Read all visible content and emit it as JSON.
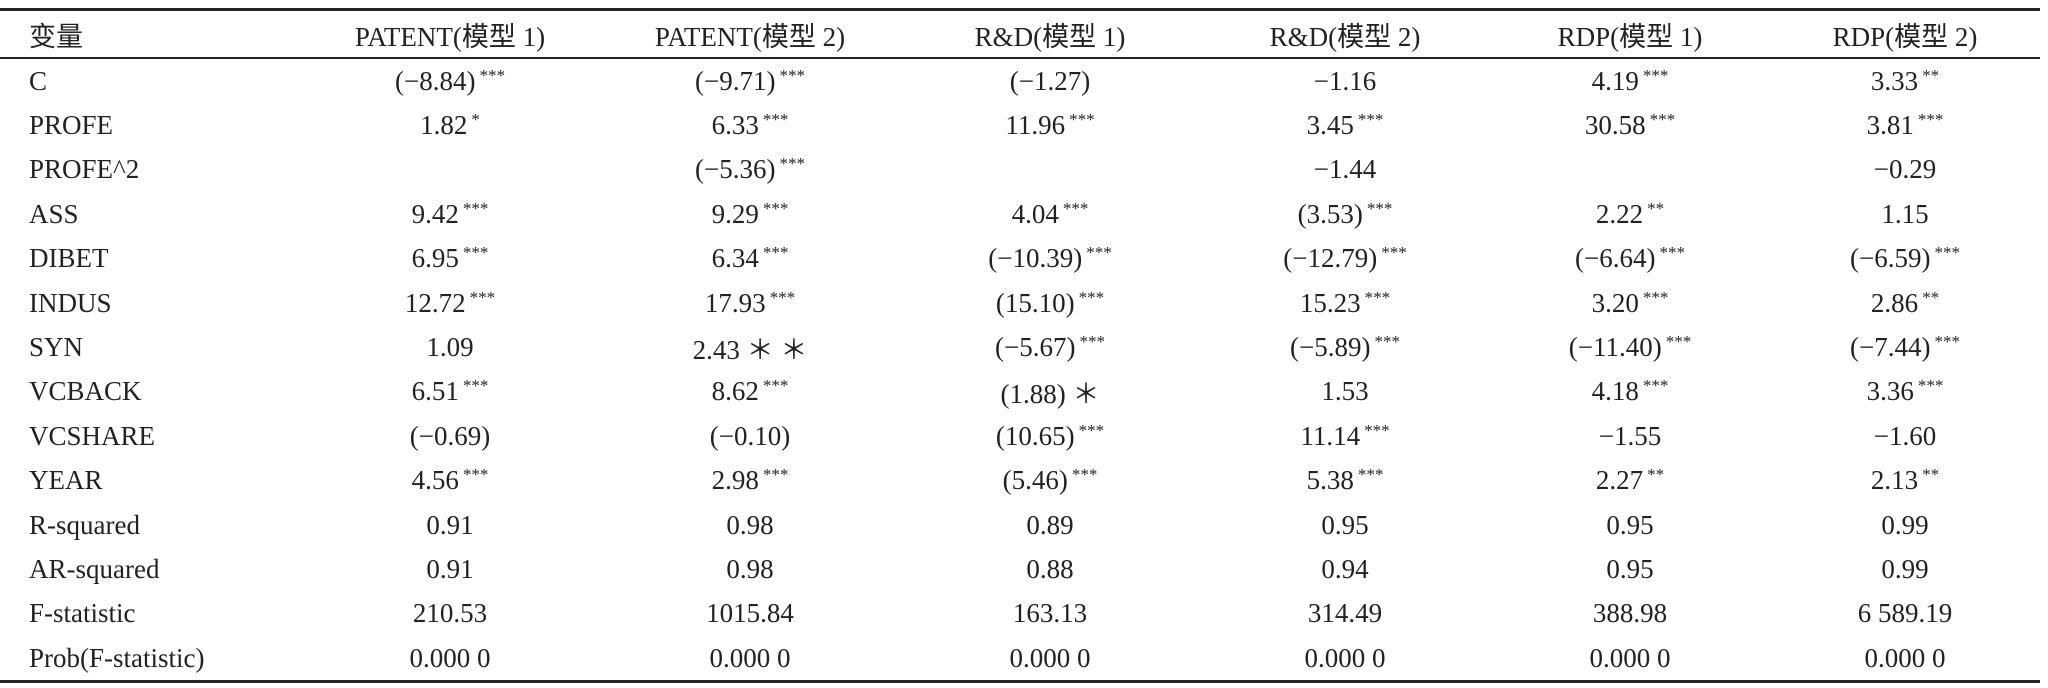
{
  "table": {
    "header": [
      "变量",
      "PATENT(模型 1)",
      "PATENT(模型 2)",
      "R&D(模型 1)",
      "R&D(模型 2)",
      "RDP(模型 1)",
      "RDP(模型 2)"
    ],
    "rows": [
      [
        "C",
        {
          "text": "(−8.84)",
          "sig": "***"
        },
        {
          "text": "(−9.71)",
          "sig": "***"
        },
        "(−1.27)",
        "−1.16",
        {
          "text": "4.19",
          "sig": "***"
        },
        {
          "text": "3.33",
          "sig": "**"
        }
      ],
      [
        "PROFE",
        {
          "text": "1.82",
          "sig": "*"
        },
        {
          "text": "6.33",
          "sig": "***"
        },
        {
          "text": "11.96",
          "sig": "***"
        },
        {
          "text": "3.45",
          "sig": "***"
        },
        {
          "text": "30.58",
          "sig": "***"
        },
        {
          "text": "3.81",
          "sig": "***"
        }
      ],
      [
        "PROFE^2",
        null,
        {
          "text": "(−5.36)",
          "sig": "***"
        },
        null,
        "−1.44",
        null,
        "−0.29"
      ],
      [
        "ASS",
        {
          "text": "9.42",
          "sig": "***"
        },
        {
          "text": "9.29",
          "sig": "***"
        },
        {
          "text": "4.04",
          "sig": "***"
        },
        {
          "text": "(3.53)",
          "sig": "***"
        },
        {
          "text": "2.22",
          "sig": "**"
        },
        "1.15"
      ],
      [
        "DIBET",
        {
          "text": "6.95",
          "sig": "***"
        },
        {
          "text": "6.34",
          "sig": "***"
        },
        {
          "text": "(−10.39)",
          "sig": "***"
        },
        {
          "text": "(−12.79)",
          "sig": "***"
        },
        {
          "text": "(−6.64)",
          "sig": "***"
        },
        {
          "text": "(−6.59)",
          "sig": "***"
        }
      ],
      [
        "INDUS",
        {
          "text": "12.72",
          "sig": "***"
        },
        {
          "text": "17.93",
          "sig": "***"
        },
        {
          "text": "(15.10)",
          "sig": "***"
        },
        {
          "text": "15.23",
          "sig": "***"
        },
        {
          "text": "3.20",
          "sig": "***"
        },
        {
          "text": "2.86",
          "sig": "**"
        }
      ],
      [
        "SYN",
        "1.09",
        "2.43 ＊ ＊",
        {
          "text": "(−5.67)",
          "sig": "***"
        },
        {
          "text": "(−5.89)",
          "sig": "***"
        },
        {
          "text": "(−11.40)",
          "sig": "***"
        },
        {
          "text": "(−7.44)",
          "sig": "***"
        }
      ],
      [
        "VCBACK",
        {
          "text": "6.51",
          "sig": "***"
        },
        {
          "text": "8.62",
          "sig": "***"
        },
        "(1.88) ＊",
        "1.53",
        {
          "text": "4.18",
          "sig": "***"
        },
        {
          "text": "3.36",
          "sig": "***"
        }
      ],
      [
        "VCSHARE",
        "(−0.69)",
        "(−0.10)",
        {
          "text": "(10.65)",
          "sig": "***"
        },
        {
          "text": "11.14",
          "sig": "***"
        },
        "−1.55",
        "−1.60"
      ],
      [
        "YEAR",
        {
          "text": "4.56",
          "sig": "***"
        },
        {
          "text": "2.98",
          "sig": "***"
        },
        {
          "text": "(5.46)",
          "sig": "***"
        },
        {
          "text": "5.38",
          "sig": "***"
        },
        {
          "text": "2.27",
          "sig": "**"
        },
        {
          "text": "2.13",
          "sig": "**"
        }
      ],
      [
        "R-squared",
        "0.91",
        "0.98",
        "0.89",
        "0.95",
        "0.95",
        "0.99"
      ],
      [
        "AR-squared",
        "0.91",
        "0.98",
        "0.88",
        "0.94",
        "0.95",
        "0.99"
      ],
      [
        "F-statistic",
        "210.53",
        "1015.84",
        "163.13",
        "314.49",
        "388.98",
        "6 589.19"
      ],
      [
        "Prob(F-statistic)",
        "0.000 0",
        "0.000 0",
        "0.000 0",
        "0.000 0",
        "0.000 0",
        "0.000 0"
      ]
    ]
  }
}
